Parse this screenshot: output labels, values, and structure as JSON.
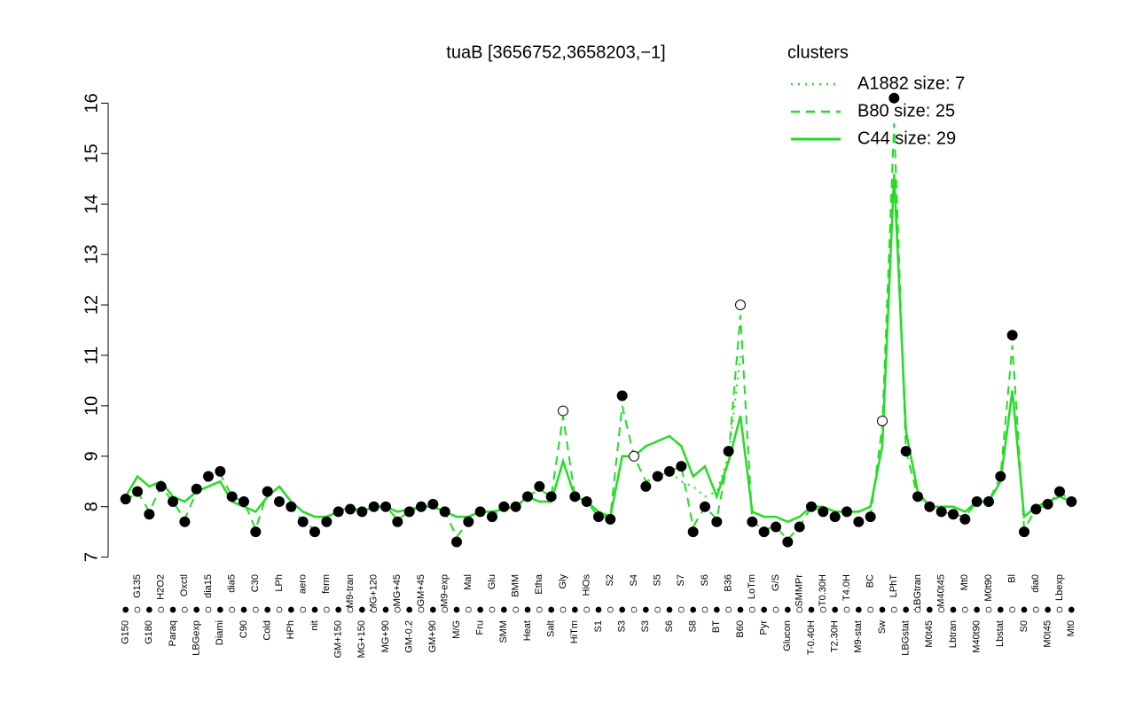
{
  "chart_data": {
    "type": "line",
    "title": "tuaB [3656752,3658203,−1]",
    "legend_title": "clusters",
    "legend_color": "#22dd22",
    "point_color": "#000000",
    "categories": [
      "G150",
      "G135",
      "G180",
      "H2O2",
      "Paraq",
      "Oxctl",
      "LBGexp",
      "dia15",
      "Diami",
      "dia5",
      "C90",
      "C30",
      "Cold",
      "LPh",
      "HPh",
      "aero",
      "nit",
      "ferm",
      "GM+150",
      "M9-tran",
      "MG+150",
      "MG+120",
      "MG+90",
      "MG+45",
      "GM-0.2",
      "GM+45",
      "GM+90",
      "M9-exp",
      "M/G",
      "Mal",
      "Fru",
      "Glu",
      "SMM",
      "BMM",
      "Heat",
      "Etha",
      "Salt",
      "Gly",
      "HiTm",
      "HiOs",
      "S1",
      "S2",
      "S3",
      "S4",
      "S3",
      "S5",
      "S6",
      "S7",
      "S8",
      "S6",
      "BT",
      "B36",
      "B60",
      "LoTm",
      "Pyr",
      "G/S",
      "Glucon",
      "SMMPr",
      "T-0.40H",
      "T0.30H",
      "T2.30H",
      "T4.0H",
      "M9-stat",
      "BC",
      "Sw",
      "LPhT",
      "LBGstat",
      "LBGtran",
      "M0t45",
      "M40t45",
      "Lbtran",
      "Mt0",
      "M40t90",
      "M0t90",
      "Lbstat",
      "Bl",
      "S0",
      "dia0",
      "M0t45",
      "Lbexp",
      "Mt0"
    ],
    "points": [
      8.15,
      8.3,
      7.85,
      8.4,
      8.1,
      7.7,
      8.35,
      8.6,
      8.7,
      8.2,
      8.1,
      7.5,
      8.3,
      8.1,
      8.0,
      7.7,
      7.5,
      7.7,
      7.9,
      7.95,
      7.9,
      8.0,
      8.0,
      7.7,
      7.9,
      8.0,
      8.05,
      7.9,
      7.3,
      7.7,
      7.9,
      7.8,
      8.0,
      8.0,
      8.2,
      8.4,
      8.2,
      9.9,
      8.2,
      8.1,
      7.8,
      7.75,
      10.2,
      9.0,
      8.4,
      8.6,
      8.7,
      8.8,
      7.5,
      8.0,
      7.7,
      9.1,
      12.0,
      7.7,
      7.5,
      7.6,
      7.3,
      7.6,
      8.0,
      7.9,
      7.8,
      7.9,
      7.7,
      7.8,
      9.7,
      16.1,
      9.1,
      8.2,
      8.0,
      7.9,
      7.85,
      7.75,
      8.1,
      8.1,
      8.6,
      11.4,
      7.5,
      7.95,
      8.05,
      8.3,
      8.1
    ],
    "series": [
      {
        "name": "A1882 size: 7",
        "color": "#22dd22",
        "dash": "dotted",
        "values": [
          null,
          null,
          null,
          null,
          null,
          null,
          null,
          null,
          null,
          null,
          null,
          null,
          null,
          null,
          null,
          null,
          null,
          null,
          null,
          null,
          null,
          null,
          null,
          null,
          null,
          null,
          null,
          null,
          null,
          null,
          null,
          null,
          null,
          null,
          null,
          null,
          null,
          null,
          null,
          null,
          null,
          null,
          null,
          null,
          null,
          8.6,
          8.7,
          8.5,
          8.4,
          8.2,
          8.3,
          9.0,
          11.0,
          null,
          null,
          null,
          null,
          null,
          null,
          null,
          null,
          null,
          null,
          null,
          null,
          null,
          null,
          null,
          null,
          null,
          null,
          null,
          null,
          null,
          null,
          null,
          null,
          null,
          null,
          null,
          null
        ]
      },
      {
        "name": "B80 size: 25",
        "color": "#22dd22",
        "dash": "dashed",
        "values": [
          8.1,
          8.3,
          7.9,
          8.4,
          8.1,
          7.75,
          8.3,
          8.55,
          8.65,
          8.2,
          8.1,
          7.55,
          8.3,
          8.1,
          8.0,
          7.7,
          7.55,
          7.7,
          7.9,
          7.95,
          7.9,
          8.0,
          8.0,
          7.75,
          7.9,
          8.0,
          8.0,
          7.9,
          7.4,
          7.7,
          7.9,
          7.8,
          8.0,
          8.0,
          8.2,
          8.35,
          8.2,
          9.8,
          8.2,
          8.1,
          7.8,
          7.8,
          10.0,
          9.0,
          8.5,
          8.6,
          8.7,
          8.8,
          7.6,
          8.0,
          7.75,
          9.0,
          11.8,
          7.7,
          7.55,
          7.6,
          7.35,
          7.6,
          8.0,
          7.9,
          7.8,
          7.9,
          7.7,
          7.8,
          9.6,
          15.6,
          9.1,
          8.2,
          8.0,
          7.9,
          7.85,
          7.8,
          8.1,
          8.1,
          8.6,
          11.2,
          7.55,
          7.95,
          8.05,
          8.3,
          8.1
        ]
      },
      {
        "name": "C44 size: 29",
        "color": "#22dd22",
        "dash": "solid",
        "values": [
          8.2,
          8.6,
          8.4,
          8.5,
          8.2,
          8.1,
          8.3,
          8.4,
          8.5,
          8.1,
          8.0,
          7.9,
          8.2,
          8.4,
          8.1,
          7.9,
          7.8,
          7.8,
          7.9,
          8.0,
          7.9,
          8.0,
          8.0,
          7.9,
          7.95,
          8.0,
          8.0,
          7.9,
          7.8,
          7.8,
          7.9,
          7.9,
          7.95,
          8.0,
          8.2,
          8.1,
          8.1,
          8.9,
          8.2,
          8.1,
          7.9,
          7.8,
          9.0,
          9.0,
          9.2,
          9.3,
          9.4,
          9.2,
          8.6,
          8.8,
          8.2,
          8.9,
          9.8,
          7.9,
          7.8,
          7.8,
          7.7,
          7.8,
          8.0,
          8.0,
          7.9,
          7.9,
          7.9,
          8.0,
          9.2,
          14.6,
          9.5,
          8.3,
          8.0,
          8.0,
          8.0,
          7.9,
          8.1,
          8.1,
          8.5,
          10.3,
          7.8,
          8.0,
          8.1,
          8.2,
          8.1
        ]
      }
    ],
    "ylim": [
      6.8,
      16.2
    ],
    "yticks": [
      7,
      8,
      9,
      10,
      11,
      12,
      13,
      14,
      15,
      16
    ]
  }
}
